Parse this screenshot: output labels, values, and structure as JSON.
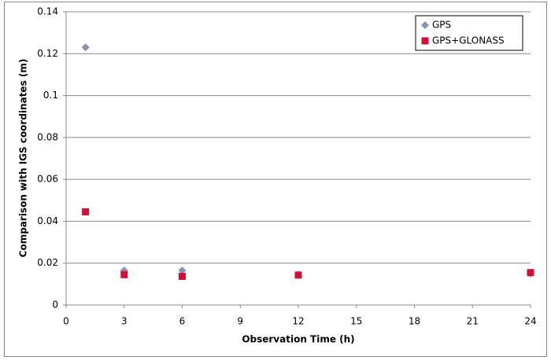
{
  "chart_data": {
    "type": "scatter",
    "x_label": "Observation Time (h)",
    "y_label": "Comparison with IGS coordinates (m)",
    "x": [
      1,
      3,
      6,
      12,
      24
    ],
    "series": [
      {
        "name": "GPS",
        "color": "#8496b0",
        "marker": "diamond",
        "values": [
          0.123,
          0.0165,
          0.0165,
          0.0145,
          0.015
        ]
      },
      {
        "name": "GPS+GLONASS",
        "color": "#d0103a",
        "marker": "square",
        "values": [
          0.0445,
          0.0145,
          0.0137,
          0.0143,
          0.0155
        ]
      }
    ],
    "xlim": [
      0,
      24
    ],
    "xticks": [
      0,
      3,
      6,
      9,
      12,
      15,
      18,
      21,
      24
    ],
    "ylim": [
      0,
      0.14
    ],
    "yticks": [
      0,
      0.02,
      0.04,
      0.06,
      0.08,
      0.1,
      0.12,
      0.14
    ],
    "grid": true,
    "legend": "top-right"
  }
}
